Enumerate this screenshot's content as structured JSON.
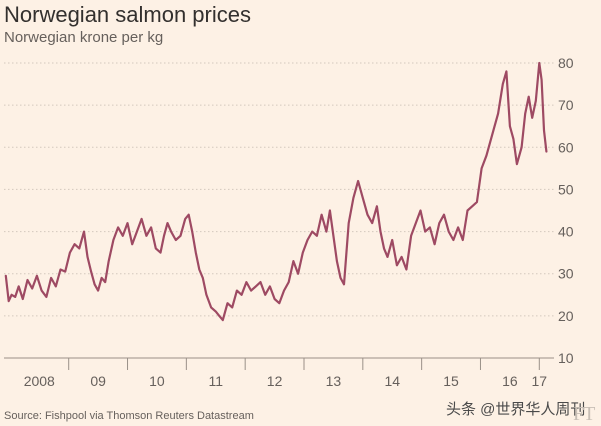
{
  "chart_data": {
    "type": "line",
    "title": "Norwegian salmon prices",
    "subtitle": "Norwegian krone per kg",
    "ylabel": "Norwegian krone per kg",
    "xlabel": "",
    "ylim": [
      10,
      80
    ],
    "xlim": [
      2007.9,
      2017.25
    ],
    "y_ticks": [
      10,
      20,
      30,
      40,
      50,
      60,
      70,
      80
    ],
    "x_ticks": [
      {
        "value": 2008.5,
        "label": "2008"
      },
      {
        "value": 2009.5,
        "label": "09"
      },
      {
        "value": 2010.5,
        "label": "10"
      },
      {
        "value": 2011.5,
        "label": "11"
      },
      {
        "value": 2012.5,
        "label": "12"
      },
      {
        "value": 2013.5,
        "label": "13"
      },
      {
        "value": 2014.5,
        "label": "14"
      },
      {
        "value": 2015.5,
        "label": "15"
      },
      {
        "value": 2016.5,
        "label": "16"
      },
      {
        "value": 2017.0,
        "label": "17"
      }
    ],
    "year_dividers": [
      2009,
      2010,
      2011,
      2012,
      2013,
      2014,
      2015,
      2016,
      2017
    ],
    "grid": true,
    "series": [
      {
        "name": "Norwegian salmon price",
        "color": "#9e4a63",
        "x": [
          2007.93,
          2007.98,
          2008.03,
          2008.09,
          2008.15,
          2008.22,
          2008.3,
          2008.38,
          2008.46,
          2008.54,
          2008.62,
          2008.7,
          2008.78,
          2008.86,
          2008.94,
          2009.02,
          2009.1,
          2009.18,
          2009.26,
          2009.32,
          2009.38,
          2009.44,
          2009.5,
          2009.56,
          2009.62,
          2009.68,
          2009.76,
          2009.84,
          2009.92,
          2010.0,
          2010.08,
          2010.16,
          2010.24,
          2010.32,
          2010.4,
          2010.48,
          2010.56,
          2010.62,
          2010.68,
          2010.74,
          2010.82,
          2010.9,
          2010.98,
          2011.04,
          2011.1,
          2011.16,
          2011.22,
          2011.28,
          2011.34,
          2011.42,
          2011.5,
          2011.56,
          2011.62,
          2011.7,
          2011.78,
          2011.86,
          2011.94,
          2012.02,
          2012.1,
          2012.18,
          2012.26,
          2012.34,
          2012.42,
          2012.5,
          2012.58,
          2012.66,
          2012.74,
          2012.82,
          2012.9,
          2012.98,
          2013.06,
          2013.14,
          2013.22,
          2013.3,
          2013.38,
          2013.44,
          2013.5,
          2013.56,
          2013.62,
          2013.68,
          2013.76,
          2013.84,
          2013.92,
          2014.0,
          2014.08,
          2014.16,
          2014.24,
          2014.3,
          2014.36,
          2014.42,
          2014.5,
          2014.58,
          2014.66,
          2014.74,
          2014.82,
          2014.9,
          2014.98,
          2015.06,
          2015.14,
          2015.22,
          2015.3,
          2015.38,
          2015.46,
          2015.54,
          2015.62,
          2015.7,
          2015.78,
          2015.86,
          2015.94,
          2016.02,
          2016.1,
          2016.16,
          2016.22,
          2016.3,
          2016.38,
          2016.44,
          2016.5,
          2016.56,
          2016.62,
          2016.7,
          2016.76,
          2016.82,
          2016.88,
          2016.94,
          2017.0,
          2017.04,
          2017.08,
          2017.12
        ],
        "values": [
          29.5,
          23.5,
          25,
          24.5,
          27,
          24,
          28.5,
          26.5,
          29.5,
          26,
          24.5,
          29,
          27,
          31,
          30.5,
          35,
          37,
          36,
          40,
          34,
          30.5,
          27.5,
          26,
          29,
          28,
          33,
          38,
          41,
          39,
          42,
          37,
          40,
          43,
          39,
          41,
          36,
          35,
          39,
          42,
          40,
          38,
          39,
          43,
          44,
          40,
          35,
          31,
          29,
          25,
          22,
          21,
          20,
          19,
          23,
          22,
          26,
          25,
          28,
          26,
          27,
          28,
          25,
          27,
          24,
          23,
          26,
          28,
          33,
          30,
          35,
          38,
          40,
          39,
          44,
          40,
          45,
          39,
          33,
          29,
          27.5,
          42,
          48,
          52,
          48,
          44,
          42,
          46,
          40,
          36,
          34,
          38,
          32,
          34,
          31,
          39,
          42,
          45,
          40,
          41,
          37,
          42,
          44,
          40,
          38,
          41,
          38,
          45,
          46,
          47,
          55,
          58,
          61,
          64,
          68,
          75,
          78,
          65,
          62,
          56,
          60,
          68,
          72,
          67,
          71,
          80,
          76,
          64,
          59
        ]
      }
    ]
  },
  "header": {
    "title": "Norwegian salmon prices",
    "subtitle": "Norwegian krone per kg"
  },
  "footer": {
    "source": "Source: Fishpool via Thomson Reuters Datastream",
    "watermark": "头条 @世界华人周刊",
    "logo": "FT"
  }
}
